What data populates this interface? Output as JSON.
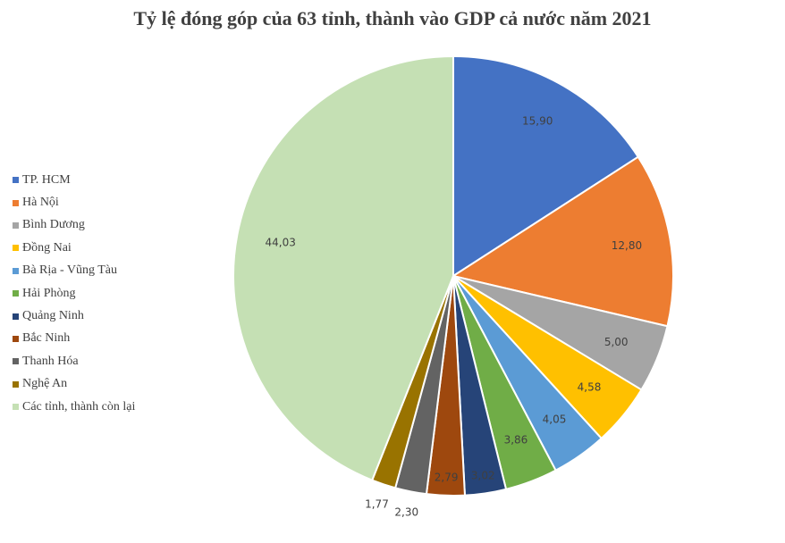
{
  "chart_data": {
    "type": "pie",
    "title": "Tỷ lệ đóng góp của 63 tỉnh, thành vào GDP cả nước năm 2021",
    "legend_position": "left",
    "categories": [
      "TP. HCM",
      "Hà Nội",
      "Bình Dương",
      "Đồng Nai",
      "Bà Rịa - Vũng Tàu",
      "Hải Phòng",
      "Quảng Ninh",
      "Bắc Ninh",
      "Thanh Hóa",
      "Nghệ An",
      "Các tỉnh, thành còn lại"
    ],
    "values": [
      15.9,
      12.8,
      5.0,
      4.58,
      4.05,
      3.86,
      3.02,
      2.79,
      2.3,
      1.77,
      44.03
    ],
    "data_labels": [
      "15,90",
      "12,80",
      "5,00",
      "4,58",
      "4,05",
      "3,86",
      "3,02",
      "2,79",
      "2,30",
      "1,77",
      "44,03"
    ],
    "colors": [
      "#4472C4",
      "#ED7D31",
      "#A5A5A5",
      "#FFC000",
      "#5B9BD5",
      "#70AD47",
      "#264478",
      "#9E480E",
      "#636363",
      "#997300",
      "#C5E0B4"
    ]
  }
}
